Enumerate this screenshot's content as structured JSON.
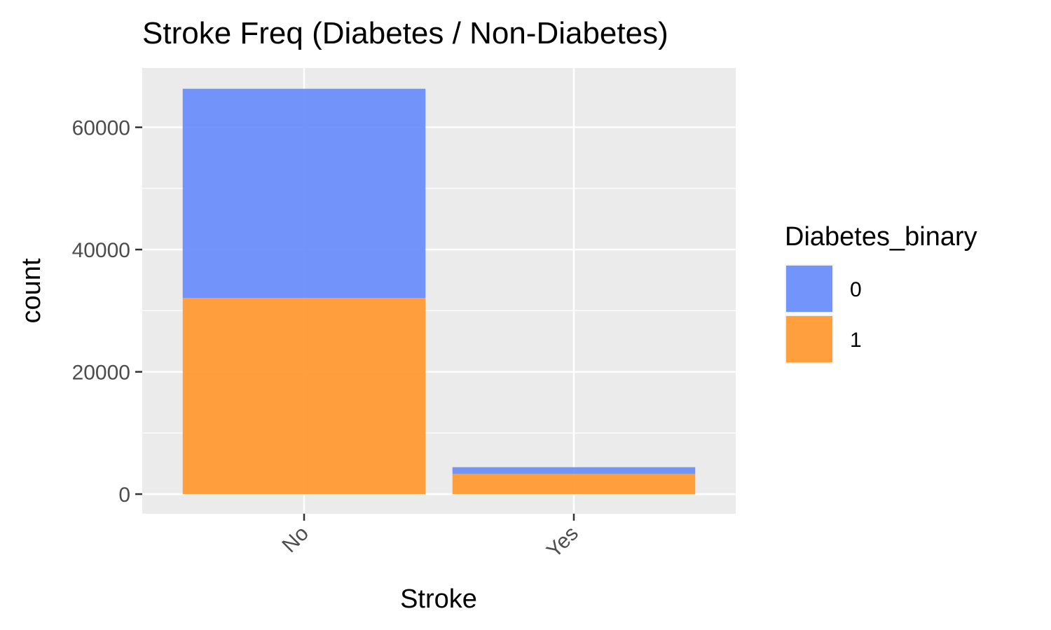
{
  "chart_data": {
    "type": "bar",
    "stacked": true,
    "title": "Stroke Freq (Diabetes / Non-Diabetes)",
    "xlabel": "Stroke",
    "ylabel": "count",
    "categories": [
      "No",
      "Yes"
    ],
    "series": [
      {
        "name": "0",
        "values": [
          34200,
          1100
        ],
        "color": "#6b8ffb"
      },
      {
        "name": "1",
        "values": [
          32100,
          3300
        ],
        "color": "#ff9a33"
      }
    ],
    "stack_order": [
      "1",
      "0"
    ],
    "y_ticks": [
      0,
      20000,
      40000,
      60000
    ],
    "y_tick_labels": [
      "0",
      "20000",
      "40000",
      "60000"
    ],
    "ylim": [
      -3200,
      69700
    ],
    "grid": true,
    "panel_background": "#ebebeb",
    "legend": {
      "title": "Diabetes_binary",
      "position": "right",
      "entries": [
        "0",
        "1"
      ]
    }
  }
}
